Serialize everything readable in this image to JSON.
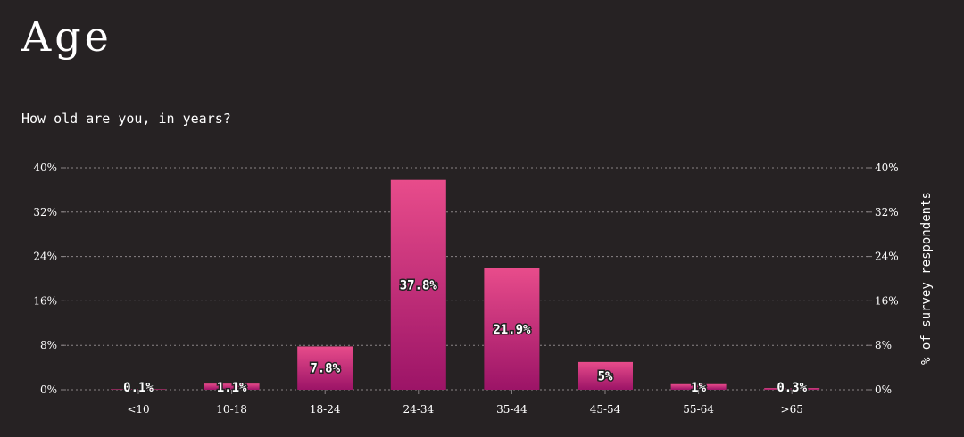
{
  "page": {
    "title": "Age",
    "question": "How old are you, in years?"
  },
  "colors": {
    "background": "#262223",
    "bar_top": "#e84c8b",
    "bar_bottom": "#9c1467",
    "grid": "#8a8486"
  },
  "chart_data": {
    "type": "bar",
    "categories": [
      "<10",
      "10-18",
      "18-24",
      "24-34",
      "35-44",
      "45-54",
      "55-64",
      ">65"
    ],
    "values": [
      0.1,
      1.1,
      7.8,
      37.8,
      21.9,
      5,
      1,
      0.3
    ],
    "data_labels": [
      "0.1%",
      "1.1%",
      "7.8%",
      "37.8%",
      "21.9%",
      "5%",
      "1%",
      "0.3%"
    ],
    "ylim": [
      0,
      40
    ],
    "y_ticks": [
      0,
      8,
      16,
      24,
      32,
      40
    ],
    "y_tick_labels": [
      "0%",
      "8%",
      "16%",
      "24%",
      "32%",
      "40%"
    ],
    "ylabel": "% of survey respondents",
    "xlabel": "",
    "grid": true,
    "right_axis": true
  }
}
